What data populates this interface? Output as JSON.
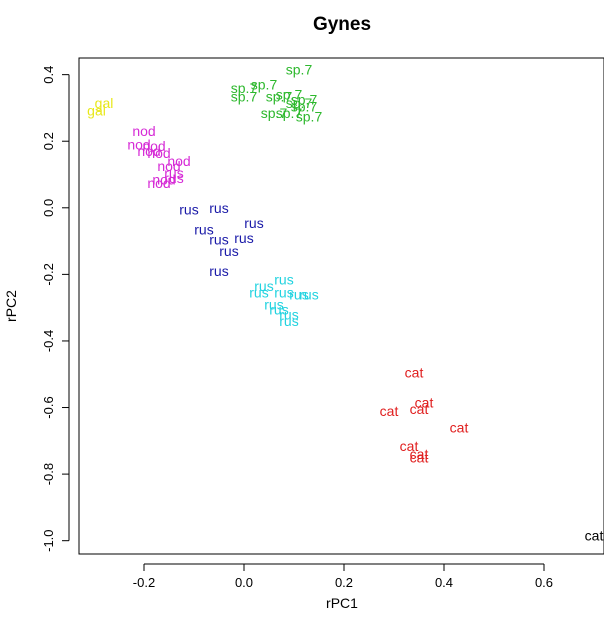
{
  "chart_data": {
    "type": "scatter",
    "title": "Gynes",
    "xlabel": "rPC1",
    "ylabel": "rPC2",
    "xlim": [
      -0.33,
      0.72
    ],
    "ylim": [
      -1.04,
      0.45
    ],
    "xticks": [
      "-0.2",
      "0.0",
      "0.2",
      "0.4",
      "0.6"
    ],
    "xtick_values": [
      -0.2,
      0.0,
      0.2,
      0.4,
      0.6
    ],
    "yticks": [
      "-1.0",
      "-0.8",
      "-0.6",
      "-0.4",
      "-0.2",
      "0.0",
      "0.2",
      "0.4"
    ],
    "ytick_values": [
      -1.0,
      -0.8,
      -0.6,
      -0.4,
      -0.2,
      0.0,
      0.2,
      0.4
    ],
    "grid": false,
    "legend": "none",
    "groups": [
      {
        "label": "gal",
        "color": "#e8e81a",
        "points": [
          {
            "x": -0.28,
            "y": 0.315
          },
          {
            "x": -0.295,
            "y": 0.292
          }
        ]
      },
      {
        "label": "sp.7",
        "color": "#2db82d",
        "points": [
          {
            "x": 0.11,
            "y": 0.415
          },
          {
            "x": 0.04,
            "y": 0.37
          },
          {
            "x": 0.0,
            "y": 0.36
          },
          {
            "x": 0.09,
            "y": 0.34
          },
          {
            "x": 0.0,
            "y": 0.335
          },
          {
            "x": 0.07,
            "y": 0.335
          },
          {
            "x": 0.12,
            "y": 0.325
          },
          {
            "x": 0.11,
            "y": 0.315
          },
          {
            "x": 0.12,
            "y": 0.305
          },
          {
            "x": 0.06,
            "y": 0.285
          },
          {
            "x": 0.09,
            "y": 0.285
          },
          {
            "x": 0.13,
            "y": 0.275
          }
        ]
      },
      {
        "label": "nod",
        "color": "#d62bd6",
        "points": [
          {
            "x": -0.2,
            "y": 0.23
          },
          {
            "x": -0.21,
            "y": 0.19
          },
          {
            "x": -0.18,
            "y": 0.185
          },
          {
            "x": -0.19,
            "y": 0.17
          },
          {
            "x": -0.17,
            "y": 0.165
          },
          {
            "x": -0.13,
            "y": 0.14
          },
          {
            "x": -0.15,
            "y": 0.125
          },
          {
            "x": -0.16,
            "y": 0.085
          },
          {
            "x": -0.17,
            "y": 0.075
          }
        ]
      },
      {
        "label": "rus",
        "color": "#d62bd6",
        "points": [
          {
            "x": -0.14,
            "y": 0.105
          },
          {
            "x": -0.14,
            "y": 0.09
          }
        ]
      },
      {
        "label": "rus",
        "color": "#1a1aa8",
        "points": [
          {
            "x": -0.11,
            "y": -0.005
          },
          {
            "x": -0.05,
            "y": 0.0
          },
          {
            "x": 0.02,
            "y": -0.045
          },
          {
            "x": -0.08,
            "y": -0.065
          },
          {
            "x": -0.05,
            "y": -0.095
          },
          {
            "x": 0.0,
            "y": -0.09
          },
          {
            "x": -0.03,
            "y": -0.13
          },
          {
            "x": -0.05,
            "y": -0.19
          }
        ]
      },
      {
        "label": "rus",
        "color": "#22d3e0",
        "points": [
          {
            "x": 0.08,
            "y": -0.215
          },
          {
            "x": 0.04,
            "y": -0.235
          },
          {
            "x": 0.03,
            "y": -0.255
          },
          {
            "x": 0.08,
            "y": -0.255
          },
          {
            "x": 0.11,
            "y": -0.26
          },
          {
            "x": 0.13,
            "y": -0.26
          },
          {
            "x": 0.06,
            "y": -0.29
          },
          {
            "x": 0.07,
            "y": -0.305
          },
          {
            "x": 0.09,
            "y": -0.32
          },
          {
            "x": 0.09,
            "y": -0.34
          }
        ]
      },
      {
        "label": "cat",
        "color": "#e01e1e",
        "points": [
          {
            "x": 0.34,
            "y": -0.495
          },
          {
            "x": 0.36,
            "y": -0.585
          },
          {
            "x": 0.35,
            "y": -0.605
          },
          {
            "x": 0.29,
            "y": -0.61
          },
          {
            "x": 0.43,
            "y": -0.66
          },
          {
            "x": 0.33,
            "y": -0.715
          },
          {
            "x": 0.35,
            "y": -0.74
          },
          {
            "x": 0.35,
            "y": -0.75
          }
        ]
      },
      {
        "label": "cat",
        "color": "#000000",
        "points": [
          {
            "x": 0.7,
            "y": -0.985
          }
        ]
      }
    ]
  }
}
